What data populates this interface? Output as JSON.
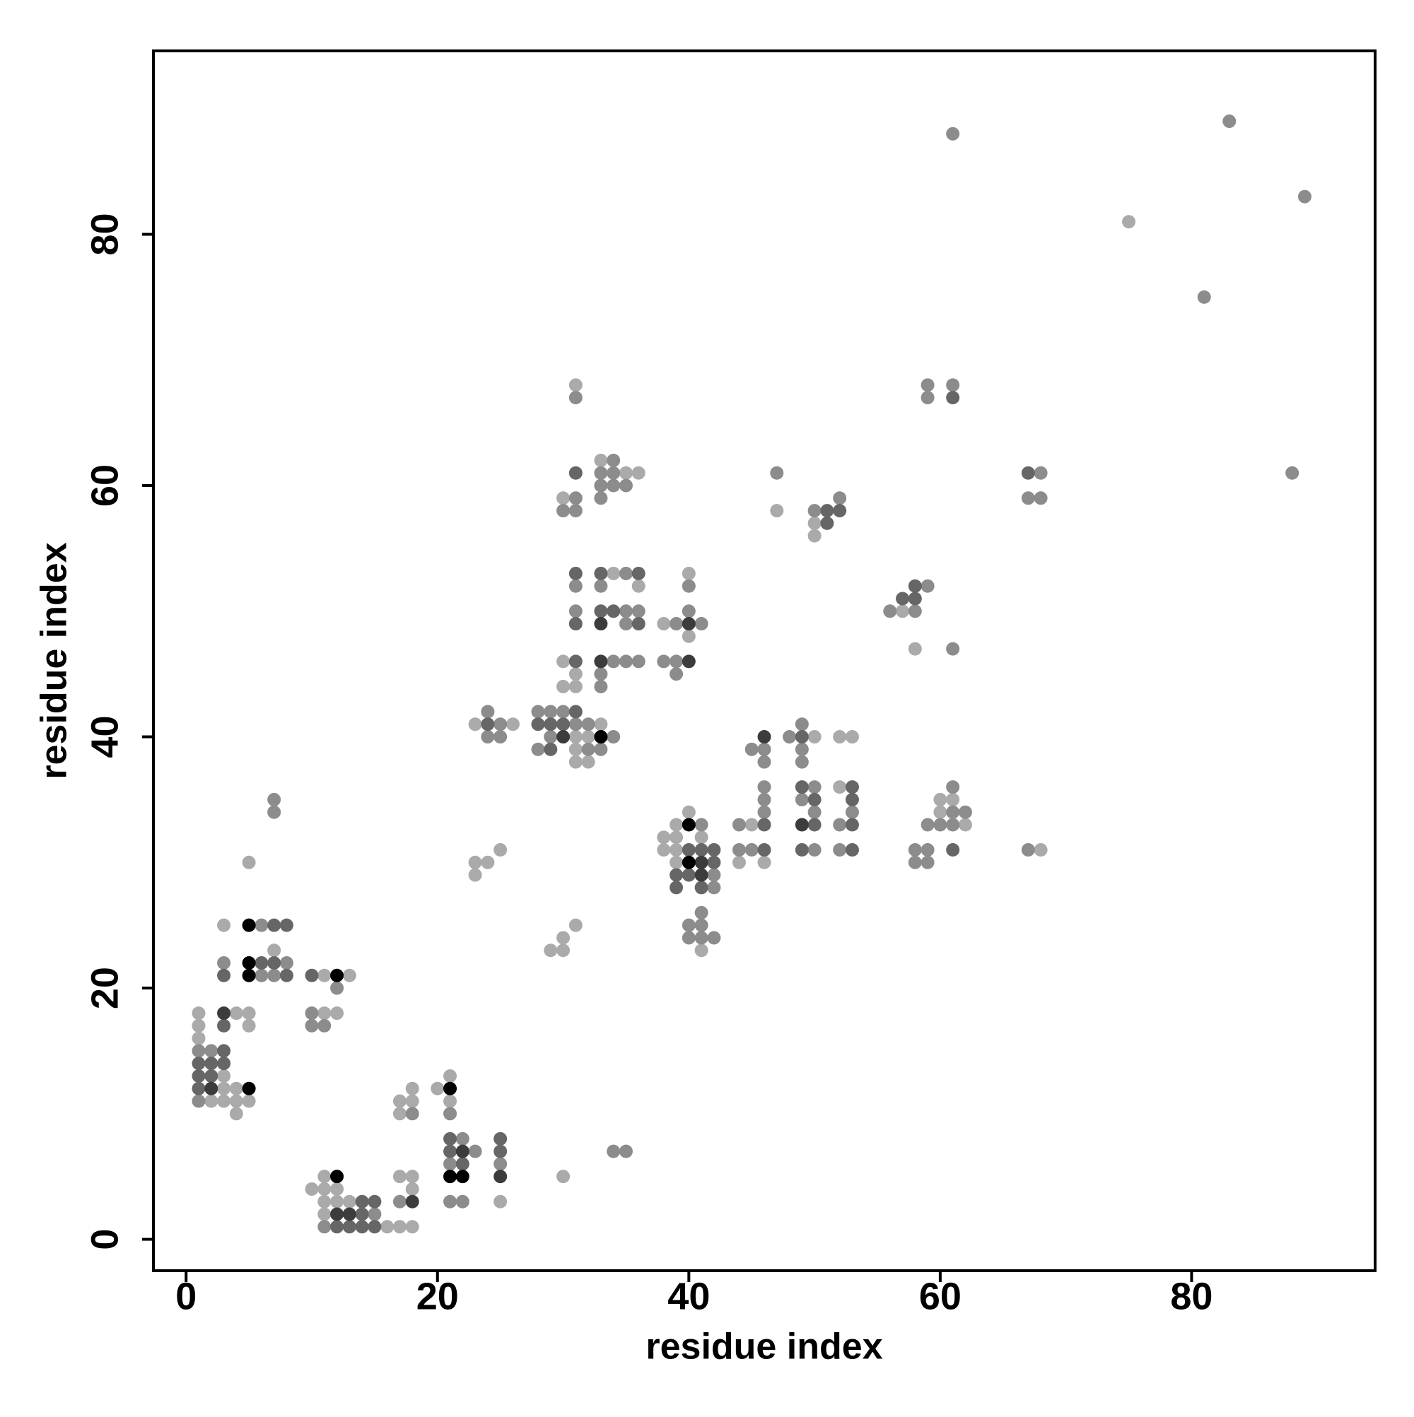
{
  "chart_data": {
    "type": "scatter",
    "x_label": "residue index",
    "y_label": "residue index",
    "xlim": [
      -2.6,
      94.6
    ],
    "ylim": [
      -2.5,
      94.6
    ],
    "xticks": [
      0,
      20,
      40,
      60,
      80
    ],
    "yticks": [
      0,
      20,
      40,
      60,
      80
    ],
    "grid": false,
    "series": [
      {
        "color": "#aaaaaa",
        "x": [
          1,
          1,
          1,
          2,
          3,
          3,
          3,
          4,
          4,
          4,
          4,
          5,
          5,
          5,
          3,
          5,
          7,
          11,
          11,
          12,
          13,
          10,
          11,
          11,
          11,
          11,
          12,
          12,
          13,
          16,
          17,
          17,
          17,
          17,
          18,
          18,
          18,
          18,
          18,
          20,
          21,
          21,
          25,
          30,
          23,
          23,
          24,
          25,
          23,
          26,
          29,
          30,
          30,
          30,
          30,
          30,
          31,
          31,
          31,
          31,
          31,
          31,
          31,
          32,
          32,
          33,
          33,
          34,
          35,
          36,
          36,
          38,
          38,
          38,
          39,
          39,
          39,
          39,
          40,
          40,
          40,
          41,
          41,
          44,
          45,
          46,
          47,
          50,
          50,
          50,
          52,
          52,
          53,
          57,
          58,
          60,
          60,
          61,
          62,
          68,
          75
        ],
        "values": [
          18,
          17,
          16,
          11,
          13,
          12,
          11,
          10,
          11,
          12,
          18,
          17,
          18,
          11,
          25,
          30,
          23,
          21,
          18,
          18,
          21,
          4,
          2,
          3,
          4,
          5,
          3,
          4,
          3,
          1,
          1,
          5,
          10,
          11,
          1,
          4,
          5,
          11,
          12,
          12,
          11,
          13,
          3,
          5,
          29,
          30,
          30,
          31,
          41,
          41,
          23,
          23,
          24,
          44,
          46,
          59,
          25,
          38,
          39,
          40,
          44,
          45,
          68,
          38,
          40,
          41,
          62,
          53,
          61,
          52,
          61,
          31,
          32,
          49,
          30,
          31,
          32,
          33,
          34,
          48,
          53,
          23,
          32,
          30,
          33,
          30,
          58,
          40,
          56,
          57,
          36,
          40,
          40,
          50,
          47,
          34,
          35,
          35,
          33,
          31,
          81
        ]
      },
      {
        "color": "#8c8c8c",
        "x": [
          1,
          1,
          2,
          3,
          6,
          6,
          7,
          7,
          7,
          8,
          10,
          10,
          11,
          11,
          12,
          15,
          17,
          18,
          21,
          21,
          21,
          22,
          22,
          23,
          25,
          34,
          35,
          24,
          24,
          25,
          25,
          28,
          28,
          29,
          29,
          30,
          30,
          31,
          31,
          31,
          31,
          31,
          31,
          32,
          32,
          33,
          33,
          33,
          33,
          33,
          33,
          33,
          34,
          34,
          34,
          34,
          34,
          35,
          35,
          35,
          35,
          35,
          36,
          36,
          38,
          39,
          39,
          39,
          40,
          40,
          40,
          40,
          41,
          41,
          41,
          41,
          41,
          42,
          42,
          42,
          44,
          44,
          45,
          45,
          46,
          46,
          46,
          46,
          46,
          47,
          48,
          49,
          49,
          49,
          49,
          50,
          50,
          50,
          50,
          52,
          52,
          52,
          53,
          56,
          58,
          59,
          58,
          58,
          59,
          59,
          59,
          59,
          59,
          60,
          61,
          61,
          61,
          61,
          61,
          61,
          62,
          67,
          67,
          68,
          68,
          81,
          83,
          88,
          89
        ],
        "values": [
          15,
          11,
          15,
          22,
          21,
          25,
          21,
          34,
          35,
          22,
          17,
          18,
          17,
          1,
          20,
          2,
          3,
          10,
          3,
          6,
          10,
          3,
          8,
          7,
          6,
          7,
          7,
          40,
          42,
          40,
          41,
          39,
          42,
          40,
          42,
          42,
          58,
          41,
          50,
          52,
          58,
          59,
          67,
          39,
          41,
          39,
          44,
          45,
          52,
          59,
          60,
          61,
          40,
          46,
          60,
          61,
          62,
          46,
          49,
          50,
          53,
          60,
          46,
          50,
          46,
          45,
          46,
          49,
          24,
          25,
          50,
          52,
          24,
          25,
          26,
          33,
          49,
          24,
          28,
          29,
          31,
          33,
          31,
          39,
          34,
          35,
          36,
          38,
          39,
          61,
          40,
          35,
          38,
          39,
          41,
          31,
          34,
          36,
          58,
          59,
          31,
          33,
          34,
          50,
          50,
          52,
          30,
          31,
          30,
          31,
          33,
          67,
          68,
          33,
          33,
          34,
          36,
          47,
          68,
          88,
          34,
          31,
          59,
          59,
          61,
          75,
          89,
          61,
          83
        ]
      },
      {
        "color": "#666666",
        "x": [
          1,
          1,
          1,
          2,
          2,
          3,
          3,
          3,
          3,
          6,
          7,
          7,
          8,
          8,
          10,
          12,
          13,
          14,
          14,
          14,
          15,
          15,
          21,
          21,
          22,
          25,
          25,
          24,
          28,
          29,
          29,
          30,
          31,
          31,
          31,
          31,
          31,
          33,
          33,
          34,
          36,
          36,
          39,
          39,
          40,
          40,
          41,
          41,
          42,
          42,
          46,
          46,
          49,
          49,
          49,
          50,
          50,
          51,
          51,
          52,
          53,
          53,
          53,
          53,
          57,
          58,
          58,
          61,
          61,
          67
        ],
        "values": [
          14,
          13,
          12,
          13,
          14,
          17,
          15,
          14,
          21,
          22,
          22,
          25,
          21,
          25,
          21,
          1,
          1,
          1,
          2,
          3,
          1,
          3,
          7,
          8,
          6,
          7,
          8,
          41,
          41,
          39,
          41,
          41,
          42,
          46,
          49,
          53,
          61,
          50,
          53,
          50,
          49,
          53,
          28,
          29,
          29,
          31,
          28,
          31,
          30,
          31,
          31,
          33,
          31,
          36,
          40,
          33,
          35,
          57,
          58,
          58,
          31,
          33,
          35,
          36,
          51,
          51,
          52,
          31,
          67,
          61
        ]
      },
      {
        "color": "#3c3c3c",
        "x": [
          2,
          3,
          12,
          13,
          18,
          22,
          25,
          30,
          33,
          33,
          40,
          40,
          41,
          41,
          46,
          49
        ],
        "values": [
          12,
          18,
          2,
          2,
          3,
          7,
          5,
          40,
          46,
          49,
          46,
          49,
          29,
          30,
          40,
          33
        ]
      },
      {
        "color": "#000000",
        "x": [
          5,
          5,
          5,
          5,
          12,
          12,
          21,
          21,
          22,
          33,
          40,
          40
        ],
        "values": [
          12,
          21,
          22,
          25,
          21,
          5,
          5,
          12,
          5,
          40,
          30,
          33
        ]
      }
    ]
  }
}
